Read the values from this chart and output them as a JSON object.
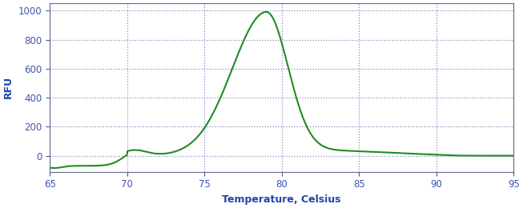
{
  "title": "",
  "xlabel": "Temperature, Celsius",
  "ylabel": "RFU",
  "xlim": [
    65,
    95
  ],
  "ylim": [
    -110,
    1050
  ],
  "xticks": [
    65,
    70,
    75,
    80,
    85,
    90,
    95
  ],
  "yticks": [
    0,
    200,
    400,
    600,
    800,
    1000
  ],
  "line_color": "#228B22",
  "line_width": 1.5,
  "background_color": "#ffffff",
  "grid_color": "#5555aa",
  "tick_color": "#4455aa",
  "label_color": "#2244aa",
  "peak_temp": 79.0,
  "peak_value": 970
}
